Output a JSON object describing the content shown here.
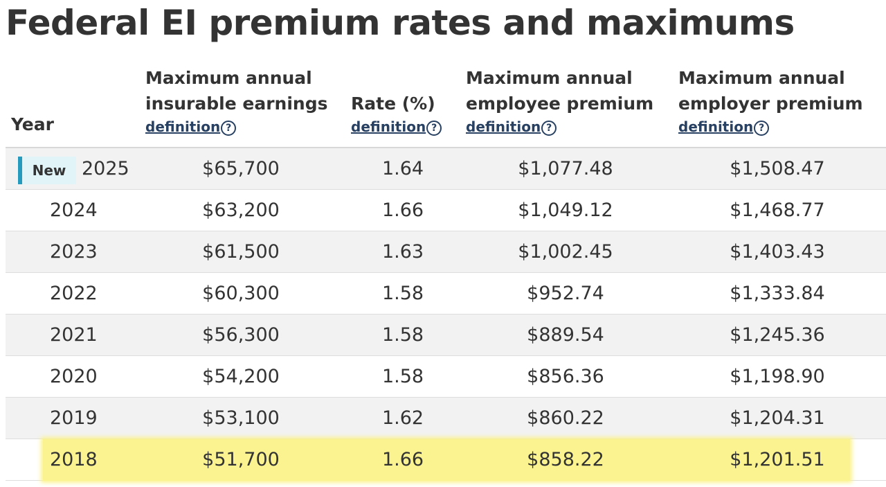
{
  "page": {
    "title": "Federal EI premium rates and maximums"
  },
  "table": {
    "headers": {
      "year": "Year",
      "earnings_line1": "Maximum annual",
      "earnings_line2": "insurable earnings",
      "rate": "Rate (%)",
      "employee_line1": "Maximum annual",
      "employee_line2": "employee premium",
      "employer_line1": "Maximum annual",
      "employer_line2": "employer premium",
      "definition_link": "definition",
      "help_glyph": "?"
    },
    "new_badge": "New",
    "rows": [
      {
        "year": "2025",
        "earnings": "$65,700",
        "rate": "1.64",
        "employee": "$1,077.48",
        "employer": "$1,508.47"
      },
      {
        "year": "2024",
        "earnings": "$63,200",
        "rate": "1.66",
        "employee": "$1,049.12",
        "employer": "$1,468.77"
      },
      {
        "year": "2023",
        "earnings": "$61,500",
        "rate": "1.63",
        "employee": "$1,002.45",
        "employer": "$1,403.43"
      },
      {
        "year": "2022",
        "earnings": "$60,300",
        "rate": "1.58",
        "employee": "$952.74",
        "employer": "$1,333.84"
      },
      {
        "year": "2021",
        "earnings": "$56,300",
        "rate": "1.58",
        "employee": "$889.54",
        "employer": "$1,245.36"
      },
      {
        "year": "2020",
        "earnings": "$54,200",
        "rate": "1.58",
        "employee": "$856.36",
        "employer": "$1,198.90"
      },
      {
        "year": "2019",
        "earnings": "$53,100",
        "rate": "1.62",
        "employee": "$860.22",
        "employer": "$1,204.31"
      },
      {
        "year": "2018",
        "earnings": "$51,700",
        "rate": "1.66",
        "employee": "$858.22",
        "employer": "$1,201.51"
      }
    ]
  },
  "colors": {
    "link": "#284162",
    "new_badge_accent": "#269abc",
    "highlight": "#fbf38f",
    "stripe": "#f2f2f2"
  },
  "icons": {
    "help": "question-circle-icon"
  }
}
